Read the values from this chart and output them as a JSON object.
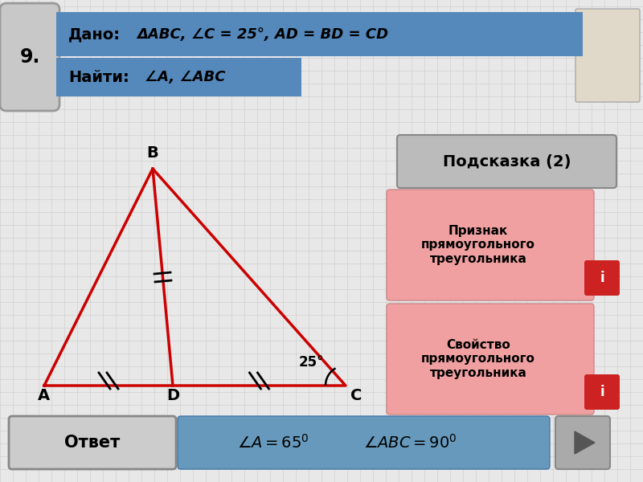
{
  "bg_color": "#e8e8e8",
  "grid_color": "#d0d0d0",
  "title_num": "9.",
  "dado_label": "Дано:",
  "dado_text": "ΔABC, ∠C = 25°, AD = BD = CD",
  "najti_label": "Найти:",
  "najti_text": "∠A, ∠ABC",
  "triangle_color": "#cc0000",
  "triangle_lw": 2.5,
  "angle_C_text": "25°",
  "hint_box_text": "Подсказка (2)",
  "hint1_text": "Признак\nпрямоугольного\nтреугольника",
  "hint2_text": "Свойство\nпрямоугольного\nтреугольника",
  "answer_label": "Ответ",
  "answer_text_1": "∠A = 65",
  "answer_text_2": "∠ABC = 90",
  "dado_bg": "#5588bb",
  "najti_bg": "#5588bb",
  "hint_box_bg": "#bbbbbb",
  "hint1_bg": "#f0a0a0",
  "hint2_bg": "#f0a0a0",
  "answer_bg": "#cccccc",
  "answer_text_bg": "#6699bb",
  "nav_bg": "#aaaaaa"
}
